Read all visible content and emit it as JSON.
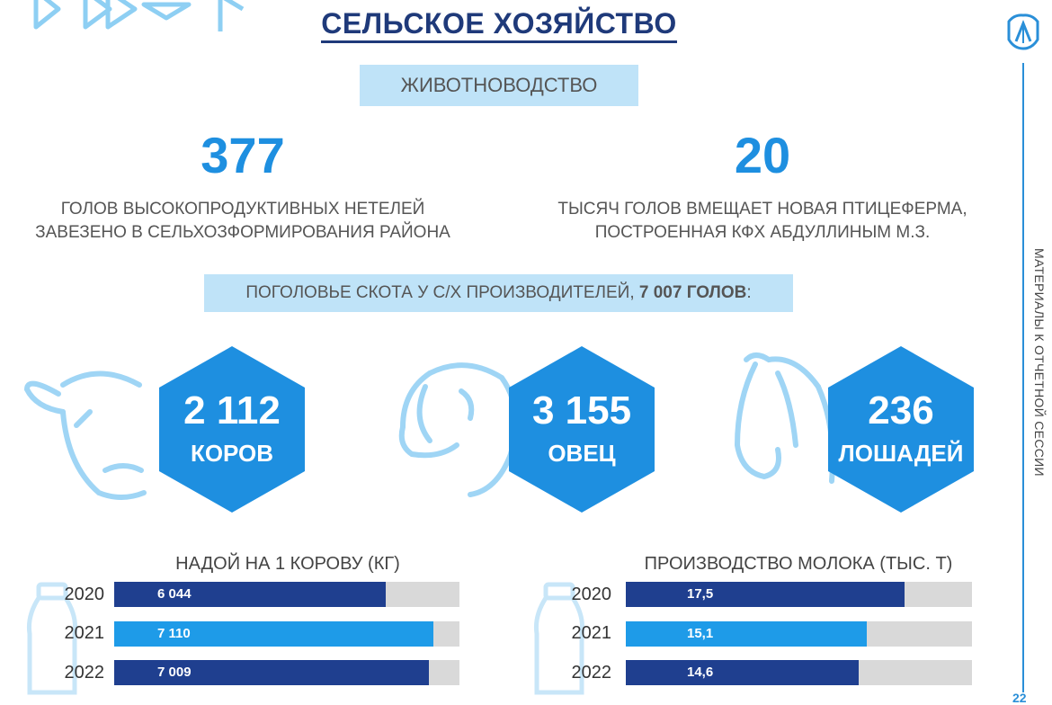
{
  "header": {
    "title": "СЕЛЬСКОЕ ХОЗЯЙСТВО"
  },
  "section": {
    "label": "ЖИВОТНОВОДСТВО"
  },
  "stats": [
    {
      "number": "377",
      "line1": "ГОЛОВ  ВЫСОКОПРОДУКТИВНЫХ НЕТЕЛЕЙ",
      "line2": "ЗАВЕЗЕНО В СЕЛЬХОЗФОРМИРОВАНИЯ РАЙОНА"
    },
    {
      "number": "20",
      "line1": "ТЫСЯЧ ГОЛОВ  ВМЕЩАЕТ НОВАЯ ПТИЦЕФЕРМА,",
      "line2": "ПОСТРОЕННАЯ КФХ АБДУЛЛИНЫМ М.З."
    }
  ],
  "livestock_header": {
    "prefix": "ПОГОЛОВЬЕ СКОТА У С/Х ПРОИЗВОДИТЕЛЕЙ, ",
    "total": "7 007 ГОЛОВ",
    "suffix": ":"
  },
  "animals": [
    {
      "icon": "cow-icon",
      "count": "2 112",
      "label": "КОРОВ"
    },
    {
      "icon": "sheep-icon",
      "count": "3 155",
      "label": "ОВЕЦ"
    },
    {
      "icon": "horse-icon",
      "count": "236",
      "label": "ЛОШАДЕЙ"
    }
  ],
  "colors": {
    "dark_blue": "#1f3f8f",
    "light_blue": "#1e9be8",
    "accent": "#1e8fe0",
    "pill": "#bfe3f8",
    "track": "#d9d9d9"
  },
  "chart_data": [
    {
      "type": "bar",
      "title": "НАДОЙ НА 1 КОРОВУ (КГ)",
      "categories": [
        "2020",
        "2021",
        "2022"
      ],
      "values": [
        6044,
        7110,
        7009
      ],
      "labels": [
        "6 044",
        "7 110",
        "7 009"
      ],
      "max": 7690
    },
    {
      "type": "bar",
      "title": "ПРОИЗВОДСТВО МОЛОКА (ТЫС. Т)",
      "categories": [
        "2020",
        "2021",
        "2022"
      ],
      "values": [
        17.5,
        15.1,
        14.6
      ],
      "labels": [
        "17,5",
        "15,1",
        "14,6"
      ],
      "max": 21.7
    }
  ],
  "sidebar": {
    "text": "МАТЕРИАЛЫ К ОТЧЕТНОЙ СЕССИИ",
    "page": "22"
  }
}
